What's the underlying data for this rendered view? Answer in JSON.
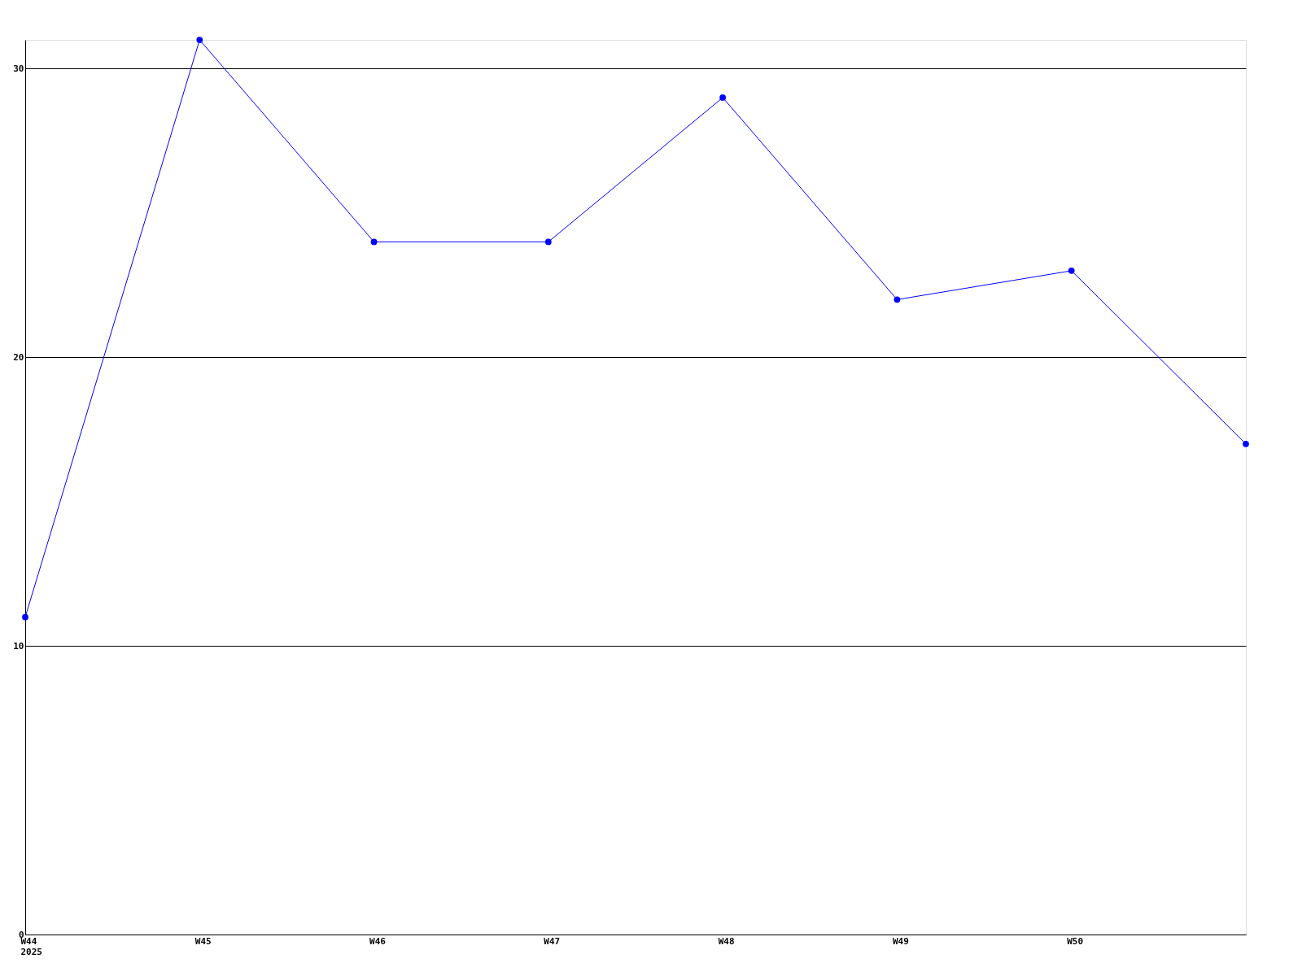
{
  "chart_data": {
    "type": "line",
    "categories": [
      "W44\n2025",
      "W45",
      "W46",
      "W47",
      "W48",
      "W49",
      "W50",
      null
    ],
    "series": [
      {
        "color": "#0000ff",
        "values": [
          11,
          31,
          24,
          24,
          29,
          22,
          23,
          17
        ]
      }
    ],
    "ylim": [
      0,
      31
    ],
    "yticks": [
      0,
      10,
      20,
      30
    ],
    "grid": "y",
    "marker": "circle",
    "line_style": "solid"
  }
}
